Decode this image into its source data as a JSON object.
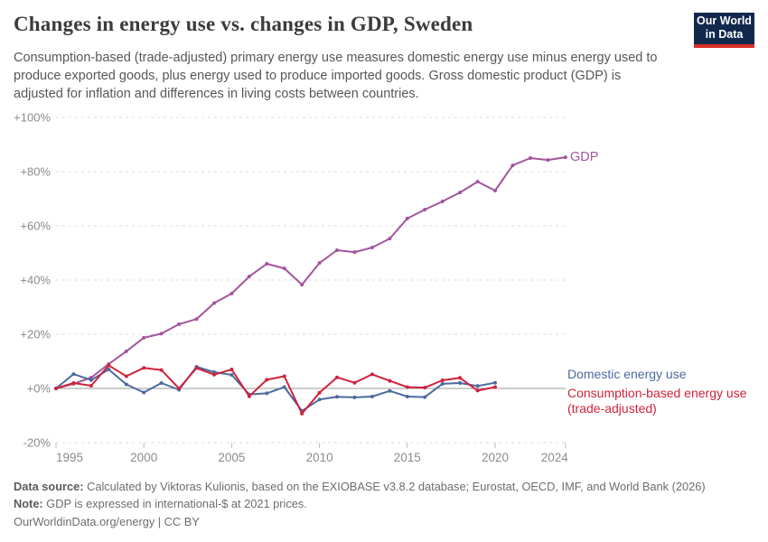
{
  "header": {
    "title": "Changes in energy use vs. changes in GDP, Sweden",
    "subtitle": "Consumption-based (trade-adjusted) primary energy use measures domestic energy use minus energy used to produce exported goods, plus energy used to produce imported goods. Gross domestic product (GDP) is adjusted for inflation and differences in living costs between countries.",
    "logo": {
      "line1": "Our World",
      "line2": "in Data",
      "bg_color": "#12294d",
      "accent_color": "#d93025"
    }
  },
  "chart_data": {
    "type": "line",
    "title": "Changes in energy use vs. changes in GDP, Sweden",
    "unit": "%",
    "ylim": [
      -20,
      100
    ],
    "xlim": [
      1995,
      2024
    ],
    "grid": "horizontal-dashed",
    "legend_position": "right-end-of-line",
    "y_ticks": [
      {
        "value": 100,
        "label": "+100%"
      },
      {
        "value": 80,
        "label": "+80%"
      },
      {
        "value": 60,
        "label": "+60%"
      },
      {
        "value": 40,
        "label": "+40%"
      },
      {
        "value": 20,
        "label": "+20%"
      },
      {
        "value": 0,
        "label": "+0%"
      },
      {
        "value": -20,
        "label": "-20%"
      }
    ],
    "x_ticks": [
      {
        "value": 1995,
        "label": "1995"
      },
      {
        "value": 2000,
        "label": "2000"
      },
      {
        "value": 2005,
        "label": "2005"
      },
      {
        "value": 2010,
        "label": "2010"
      },
      {
        "value": 2015,
        "label": "2015"
      },
      {
        "value": 2020,
        "label": "2020"
      },
      {
        "value": 2024,
        "label": "2024"
      }
    ],
    "series": [
      {
        "name": "GDP",
        "color": "#a2559c",
        "start_year": 1995,
        "end_year": 2024,
        "values": [
          0,
          1.7,
          4,
          9,
          13.7,
          18.7,
          20.2,
          23.7,
          25.6,
          31.5,
          35,
          41.3,
          46,
          44.3,
          38.3,
          46.3,
          51,
          50.3,
          52,
          55.3,
          62.7,
          66,
          69,
          72.3,
          76.3,
          73,
          82.3,
          85,
          84.3,
          85.3
        ]
      },
      {
        "name": "Domestic energy use",
        "color": "#4c6a9e",
        "start_year": 1995,
        "end_year": 2020,
        "values": [
          0,
          5.3,
          3.1,
          7,
          1.5,
          -1.5,
          2,
          -0.5,
          8,
          6,
          5,
          -2.2,
          -1.8,
          0.5,
          -8.3,
          -4.1,
          -3.1,
          -3.3,
          -3,
          -0.9,
          -3,
          -3.2,
          1.7,
          2,
          0.9,
          2.1
        ]
      },
      {
        "name": "Consumption-based energy use (trade-adjusted)",
        "color": "#d0233c",
        "start_year": 1995,
        "end_year": 2020,
        "values": [
          0,
          2,
          1,
          8.5,
          4.5,
          7.6,
          6.8,
          0,
          7.5,
          5.1,
          7,
          -2.9,
          3.2,
          4.5,
          -9.3,
          -1.6,
          4.1,
          2.1,
          5.2,
          2.8,
          0.5,
          0.3,
          3,
          3.9,
          -0.8,
          0.5
        ]
      }
    ]
  },
  "annotations": {
    "gdp_label": "GDP",
    "domestic_label": "Domestic energy use",
    "consumption_label_line1": "Consumption-based energy use",
    "consumption_label_line2": "(trade-adjusted)"
  },
  "footer": {
    "datasource_prefix": "Data source:",
    "datasource_text": " Calculated by Viktoras Kulionis, based on the EXIOBASE v3.8.2 database; Eurostat, OECD, IMF, and World Bank (2026)",
    "note_prefix": "Note:",
    "note_text": " GDP is expressed in international-$ at 2021 prices.",
    "link_text": "OurWorldinData.org/energy | CC BY"
  }
}
